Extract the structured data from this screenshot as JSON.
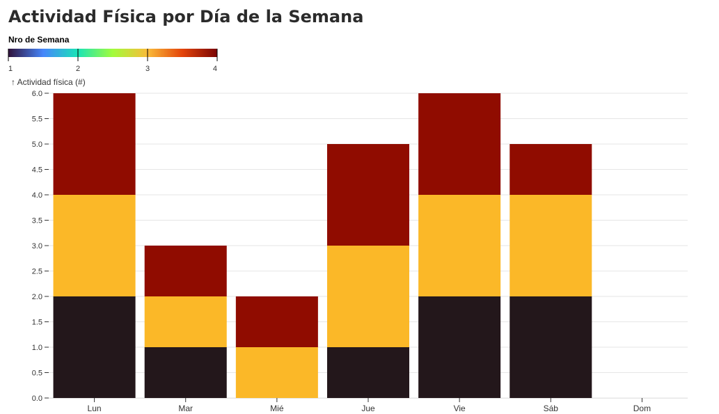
{
  "chart_data": {
    "type": "bar",
    "stacked": true,
    "title": "Actividad Física por Día de la Semana",
    "ylabel": "↑ Actividad física (#)",
    "xlabel": "",
    "ylim": [
      0,
      6
    ],
    "y_ticks": [
      "0.0",
      "0.5",
      "1.0",
      "1.5",
      "2.0",
      "2.5",
      "3.0",
      "3.5",
      "4.0",
      "4.5",
      "5.0",
      "5.5",
      "6.0"
    ],
    "grid": true,
    "categories": [
      "Lun",
      "Mar",
      "Mié",
      "Jue",
      "Vie",
      "Sáb",
      "Dom"
    ],
    "legend": {
      "title": "Nro de Semana",
      "type": "color-ramp",
      "ticks": [
        "1",
        "2",
        "3",
        "4"
      ],
      "placement": "top-left",
      "ramp_colors": [
        "#30123b",
        "#4686fb",
        "#1ae4b6",
        "#a2fc3c",
        "#fabb39",
        "#e3440a",
        "#7a0403"
      ]
    },
    "series": [
      {
        "week": 2,
        "color": "#23171b",
        "values": [
          2,
          1,
          0,
          1,
          2,
          2,
          0
        ]
      },
      {
        "week": 3,
        "color": "#fbb828",
        "values": [
          2,
          1,
          1,
          2,
          2,
          2,
          0
        ]
      },
      {
        "week": 4,
        "color": "#900c00",
        "values": [
          2,
          1,
          1,
          2,
          2,
          1,
          0
        ]
      }
    ]
  }
}
